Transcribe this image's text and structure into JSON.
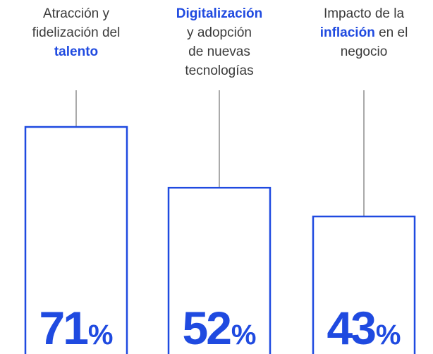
{
  "chart_data": {
    "type": "bar",
    "categories": [
      [
        [
          {
            "text": "Atracción y"
          }
        ],
        [
          {
            "text": "fidelización del"
          }
        ],
        [
          {
            "text": "talento",
            "strong": true
          }
        ]
      ],
      [
        [
          {
            "text": "Digitalización",
            "strong": true
          }
        ],
        [
          {
            "text": "y adopción"
          }
        ],
        [
          {
            "text": "de nuevas"
          }
        ],
        [
          {
            "text": "tecnologías"
          }
        ]
      ],
      [
        [
          {
            "text": "Impacto de la"
          }
        ],
        [
          {
            "text": "inflación",
            "strong": true
          },
          {
            "text": " en el"
          }
        ],
        [
          {
            "text": "negocio"
          }
        ]
      ]
    ],
    "values": [
      71,
      52,
      43
    ],
    "value_labels": [
      "71%",
      "52%",
      "43%"
    ],
    "color": "#1f4ae0"
  }
}
